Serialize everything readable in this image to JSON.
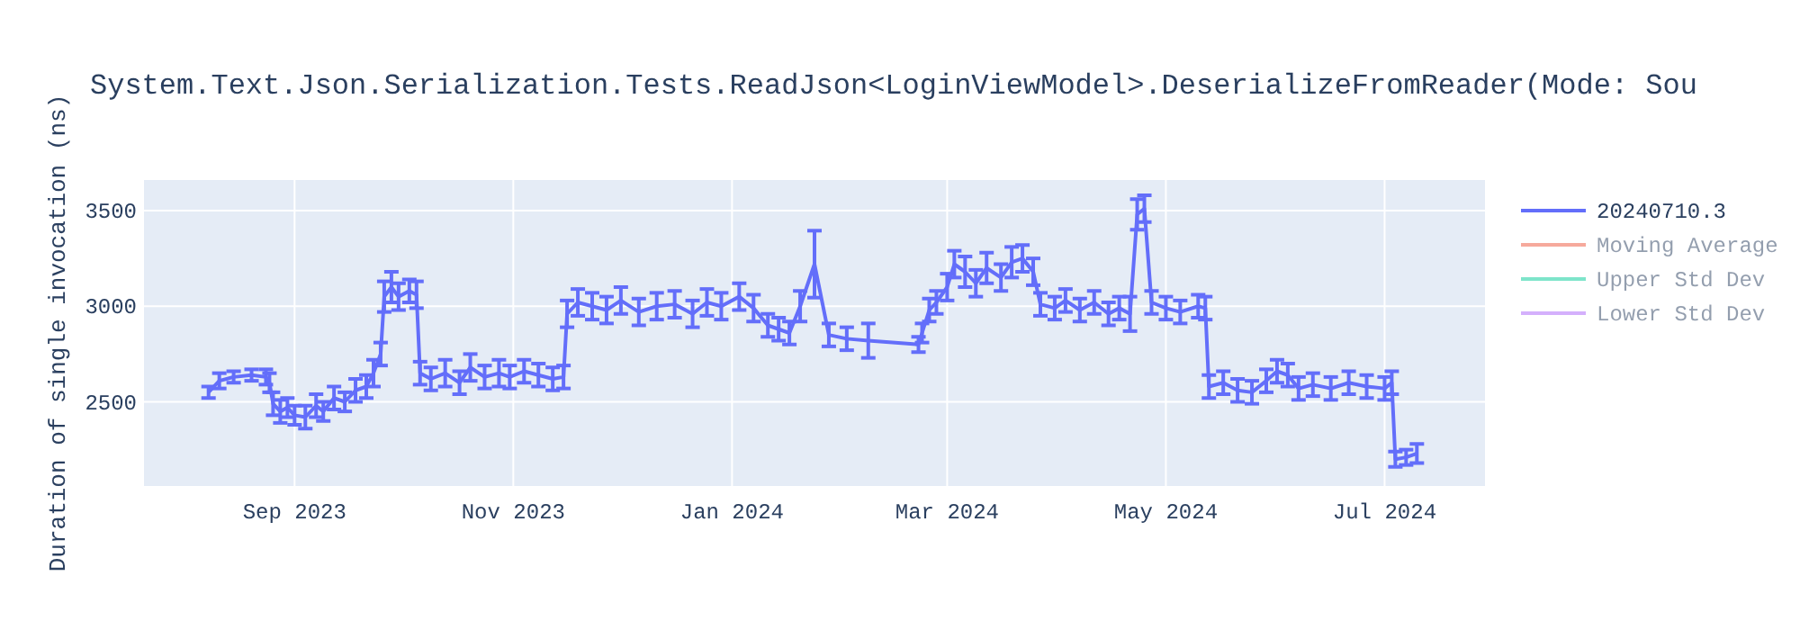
{
  "chart_data": {
    "type": "line",
    "title": "System.Text.Json.Serialization.Tests.ReadJson<LoginViewModel>.DeserializeFromReader(Mode: Sou",
    "ylabel": "Duration of single invocation (ns)",
    "xlim": [
      "2023-07-21",
      "2024-07-29"
    ],
    "xticks": [
      {
        "value": "2023-09-01",
        "label": "Sep 2023"
      },
      {
        "value": "2023-11-01",
        "label": "Nov 2023"
      },
      {
        "value": "2024-01-01",
        "label": "Jan 2024"
      },
      {
        "value": "2024-03-01",
        "label": "Mar 2024"
      },
      {
        "value": "2024-05-01",
        "label": "May 2024"
      },
      {
        "value": "2024-07-01",
        "label": "Jul 2024"
      }
    ],
    "ylim": [
      2060,
      3660
    ],
    "yticks": [
      2500,
      3000,
      3500
    ],
    "grid": true,
    "legend": "top right",
    "series": [
      {
        "name": "20240710.3",
        "color": "#636efa",
        "x": [
          "2023-08-08",
          "2023-08-11",
          "2023-08-15",
          "2023-08-20",
          "2023-08-24",
          "2023-08-25",
          "2023-08-26",
          "2023-08-28",
          "2023-08-30",
          "2023-09-01",
          "2023-09-04",
          "2023-09-07",
          "2023-09-09",
          "2023-09-12",
          "2023-09-15",
          "2023-09-18",
          "2023-09-21",
          "2023-09-23",
          "2023-09-25",
          "2023-09-26",
          "2023-09-28",
          "2023-09-30",
          "2023-10-03",
          "2023-10-05",
          "2023-10-06",
          "2023-10-09",
          "2023-10-13",
          "2023-10-17",
          "2023-10-20",
          "2023-10-24",
          "2023-10-28",
          "2023-10-31",
          "2023-11-04",
          "2023-11-08",
          "2023-11-12",
          "2023-11-15",
          "2023-11-16",
          "2023-11-19",
          "2023-11-23",
          "2023-11-27",
          "2023-12-01",
          "2023-12-06",
          "2023-12-11",
          "2023-12-16",
          "2023-12-21",
          "2023-12-25",
          "2023-12-29",
          "2024-01-03",
          "2024-01-07",
          "2024-01-11",
          "2024-01-14",
          "2024-01-17",
          "2024-01-20",
          "2024-01-24",
          "2024-01-28",
          "2024-02-02",
          "2024-02-08",
          "2024-02-22",
          "2024-02-23",
          "2024-02-25",
          "2024-02-27",
          "2024-03-01",
          "2024-03-03",
          "2024-03-06",
          "2024-03-09",
          "2024-03-12",
          "2024-03-16",
          "2024-03-19",
          "2024-03-22",
          "2024-03-25",
          "2024-03-27",
          "2024-03-31",
          "2024-04-03",
          "2024-04-07",
          "2024-04-11",
          "2024-04-15",
          "2024-04-18",
          "2024-04-21",
          "2024-04-23",
          "2024-04-25",
          "2024-04-27",
          "2024-05-01",
          "2024-05-05",
          "2024-05-10",
          "2024-05-12",
          "2024-05-13",
          "2024-05-17",
          "2024-05-21",
          "2024-05-25",
          "2024-05-29",
          "2024-06-01",
          "2024-06-04",
          "2024-06-07",
          "2024-06-11",
          "2024-06-16",
          "2024-06-21",
          "2024-06-26",
          "2024-07-01",
          "2024-07-03",
          "2024-07-04",
          "2024-07-07",
          "2024-07-10"
        ],
        "values": [
          2550,
          2610,
          2630,
          2640,
          2630,
          2600,
          2490,
          2450,
          2470,
          2430,
          2420,
          2480,
          2450,
          2520,
          2500,
          2560,
          2580,
          2650,
          2750,
          3050,
          3100,
          3050,
          3080,
          3060,
          2650,
          2620,
          2650,
          2600,
          2680,
          2630,
          2650,
          2630,
          2660,
          2640,
          2620,
          2630,
          2960,
          3020,
          3000,
          2980,
          3030,
          2970,
          3000,
          3010,
          2960,
          3020,
          3000,
          3050,
          2990,
          2900,
          2880,
          2860,
          3000,
          3220,
          2850,
          2830,
          2820,
          2800,
          2860,
          2980,
          3020,
          3100,
          3220,
          3180,
          3120,
          3200,
          3150,
          3230,
          3250,
          3180,
          3010,
          2990,
          3030,
          2980,
          3020,
          2960,
          2990,
          2960,
          3480,
          3510,
          3020,
          2990,
          2970,
          3000,
          2990,
          2580,
          2600,
          2560,
          2550,
          2610,
          2660,
          2640,
          2570,
          2590,
          2570,
          2600,
          2580,
          2570,
          2600,
          2200,
          2210,
          2230
        ],
        "errors": [
          30,
          40,
          30,
          30,
          40,
          50,
          60,
          60,
          50,
          50,
          60,
          60,
          50,
          60,
          50,
          60,
          60,
          70,
          60,
          80,
          80,
          70,
          60,
          70,
          60,
          60,
          70,
          60,
          70,
          60,
          70,
          60,
          60,
          60,
          60,
          60,
          70,
          70,
          70,
          70,
          70,
          70,
          70,
          70,
          70,
          70,
          70,
          70,
          70,
          60,
          60,
          60,
          80,
          175,
          60,
          60,
          90,
          40,
          50,
          60,
          60,
          70,
          70,
          80,
          70,
          80,
          70,
          80,
          70,
          70,
          60,
          60,
          60,
          60,
          60,
          60,
          60,
          90,
          80,
          70,
          60,
          60,
          60,
          60,
          60,
          60,
          60,
          60,
          60,
          60,
          60,
          60,
          60,
          60,
          60,
          60,
          60,
          60,
          60,
          40,
          40,
          50
        ]
      },
      {
        "name": "Moving Average",
        "color": "#ef553b"
      },
      {
        "name": "Upper Std Dev",
        "color": "#00cc96"
      },
      {
        "name": "Lower Std Dev",
        "color": "#ab63fa"
      }
    ]
  }
}
